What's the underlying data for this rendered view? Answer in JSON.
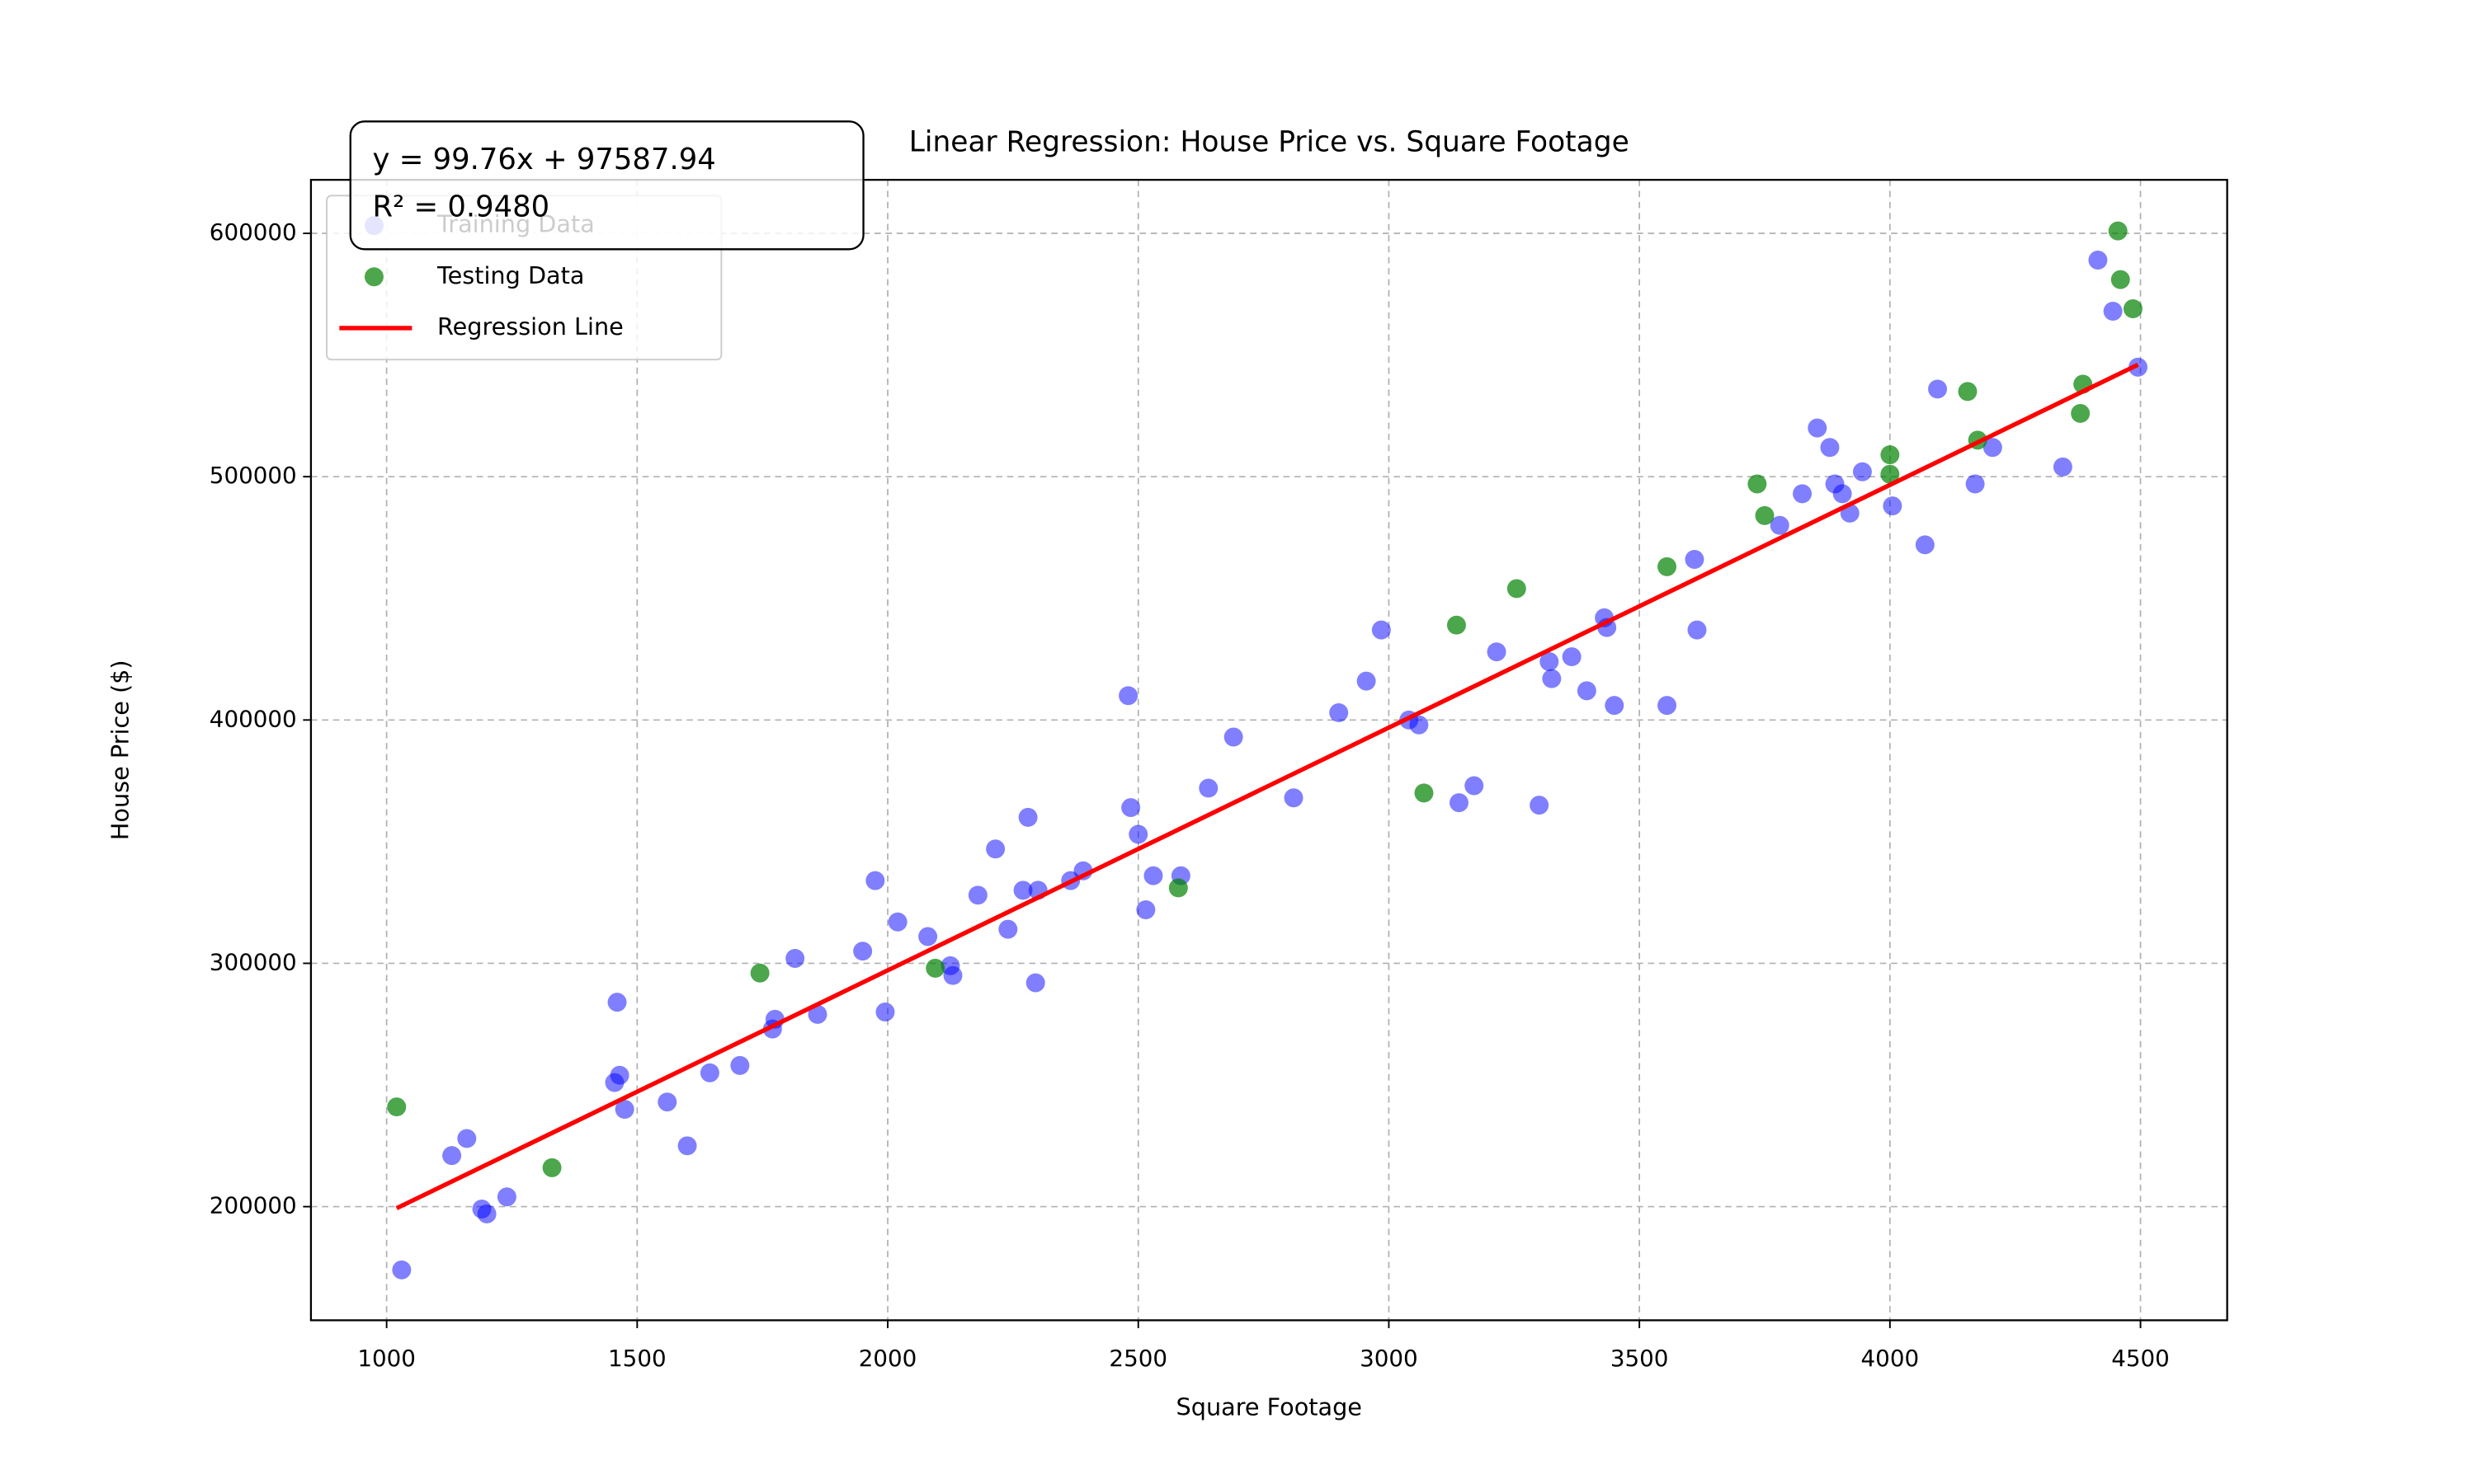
{
  "chart_data": {
    "type": "scatter",
    "title": "Linear Regression: House Price vs. Square Footage",
    "xlabel": "Square Footage",
    "ylabel": "House Price ($)",
    "xlim": [
      849,
      4673
    ],
    "ylim": [
      153300,
      622000
    ],
    "xticks": [
      1000,
      1500,
      2000,
      2500,
      3000,
      3500,
      4000,
      4500
    ],
    "yticks": [
      200000,
      300000,
      400000,
      500000,
      600000
    ],
    "grid": true,
    "legend": "upper left",
    "annotations": [
      "y = 99.76x + 97587.94",
      "R² = 0.9480"
    ],
    "series": [
      {
        "name": "Training Data",
        "color": "blue",
        "x": [
          1030,
          1130,
          1160,
          1190,
          1200,
          1240,
          1455,
          1460,
          1465,
          1475,
          1560,
          1600,
          1645,
          1705,
          1770,
          1775,
          1815,
          1860,
          1950,
          1975,
          1995,
          2020,
          2080,
          2125,
          2130,
          2180,
          2215,
          2240,
          2270,
          2280,
          2295,
          2300,
          2365,
          2390,
          2480,
          2485,
          2500,
          2515,
          2530,
          2585,
          2640,
          2690,
          2810,
          2900,
          2955,
          2985,
          3040,
          3060,
          3140,
          3170,
          3215,
          3300,
          3320,
          3325,
          3365,
          3395,
          3430,
          3435,
          3450,
          3555,
          3610,
          3615,
          3780,
          3825,
          3855,
          3880,
          3890,
          3905,
          3920,
          3945,
          4005,
          4070,
          4095,
          4170,
          4205,
          4345,
          4415,
          4445,
          4495
        ],
        "values": [
          174000,
          221000,
          228000,
          199000,
          197000,
          204000,
          251000,
          284000,
          254000,
          240000,
          243000,
          225000,
          255000,
          258000,
          273000,
          277000,
          302000,
          279000,
          305000,
          334000,
          280000,
          317000,
          311000,
          299000,
          295000,
          328000,
          347000,
          314000,
          330000,
          360000,
          292000,
          330000,
          334000,
          338000,
          410000,
          364000,
          353000,
          322000,
          336000,
          336000,
          372000,
          393000,
          368000,
          403000,
          416000,
          437000,
          400000,
          398000,
          366000,
          373000,
          428000,
          365000,
          424000,
          417000,
          426000,
          412000,
          442000,
          438000,
          406000,
          406000,
          466000,
          437000,
          480000,
          493000,
          520000,
          512000,
          497000,
          493000,
          485000,
          502000,
          488000,
          472000,
          536000,
          497000,
          512000,
          504000,
          589000,
          568000,
          545000
        ]
      },
      {
        "name": "Testing Data",
        "color": "green",
        "x": [
          1020,
          1330,
          1745,
          2095,
          2580,
          3070,
          3135,
          3255,
          3555,
          3735,
          3750,
          4000,
          4000,
          4155,
          4175,
          4380,
          4385,
          4455,
          4460,
          4485
        ],
        "values": [
          241000,
          216000,
          296000,
          298000,
          331000,
          370000,
          439000,
          454000,
          463000,
          497000,
          484000,
          509000,
          501000,
          535000,
          515000,
          526000,
          538000,
          601000,
          581000,
          569000
        ]
      },
      {
        "name": "Regression Line",
        "type": "line",
        "color": "red",
        "x": [
          1020,
          4495
        ],
        "values": [
          199343,
          546009
        ]
      }
    ]
  }
}
